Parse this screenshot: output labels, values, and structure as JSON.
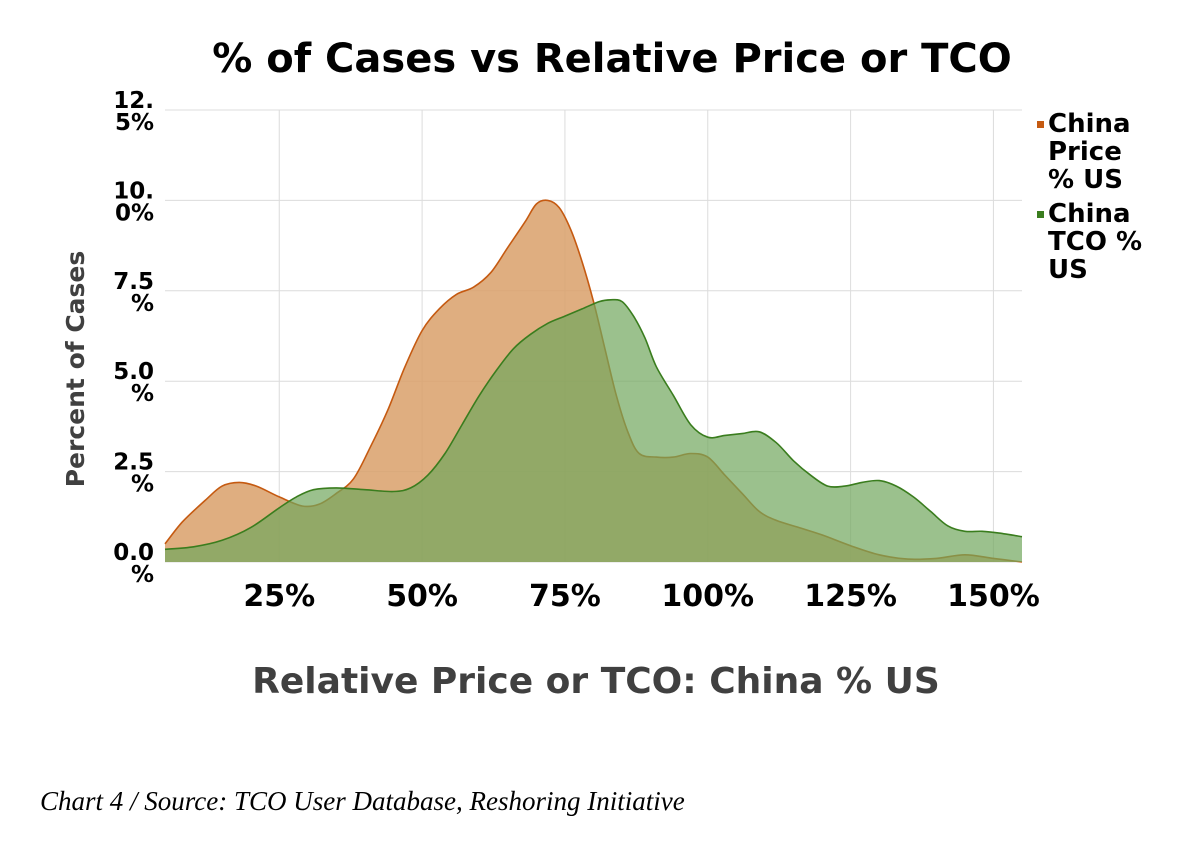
{
  "chart_data": {
    "type": "area",
    "title": "% of Cases vs Relative Price or TCO",
    "xlabel": "Relative Price or TCO:  China % US",
    "ylabel": "Percent of Cases",
    "xlim": [
      5,
      155
    ],
    "ylim": [
      0,
      12.5
    ],
    "x_ticks": [
      25,
      50,
      75,
      100,
      125,
      150
    ],
    "x_tick_labels": [
      "25%",
      "50%",
      "75%",
      "100%",
      "125%",
      "150%"
    ],
    "y_ticks": [
      0,
      2.5,
      5,
      7.5,
      10,
      12.5
    ],
    "y_tick_labels": [
      [
        "0.0",
        "%"
      ],
      [
        "2.5",
        "%"
      ],
      [
        "5.0",
        "%"
      ],
      [
        "7.5",
        "%"
      ],
      [
        "10.",
        "0%"
      ],
      [
        "12.",
        "5%"
      ]
    ],
    "grid": true,
    "legend_position": "right",
    "series": [
      {
        "name": "China Price % US",
        "legend_lines": [
          "China",
          "Price",
          "% US"
        ],
        "color": "#c55a11",
        "fill": "#d9a06a",
        "points": [
          [
            5,
            0.5
          ],
          [
            8,
            1.1
          ],
          [
            12,
            1.7
          ],
          [
            15,
            2.1
          ],
          [
            18,
            2.2
          ],
          [
            21,
            2.1
          ],
          [
            25,
            1.8
          ],
          [
            29,
            1.55
          ],
          [
            32,
            1.6
          ],
          [
            35,
            1.9
          ],
          [
            38,
            2.3
          ],
          [
            41,
            3.2
          ],
          [
            44,
            4.2
          ],
          [
            47,
            5.4
          ],
          [
            50,
            6.4
          ],
          [
            53,
            7.0
          ],
          [
            56,
            7.4
          ],
          [
            59,
            7.6
          ],
          [
            62,
            8.0
          ],
          [
            65,
            8.7
          ],
          [
            68,
            9.4
          ],
          [
            70,
            9.9
          ],
          [
            72,
            10.0
          ],
          [
            74,
            9.8
          ],
          [
            76,
            9.2
          ],
          [
            78,
            8.3
          ],
          [
            80,
            7.2
          ],
          [
            82,
            5.9
          ],
          [
            84,
            4.6
          ],
          [
            86,
            3.6
          ],
          [
            88,
            3.0
          ],
          [
            91,
            2.9
          ],
          [
            94,
            2.9
          ],
          [
            97,
            3.0
          ],
          [
            100,
            2.9
          ],
          [
            103,
            2.4
          ],
          [
            106,
            1.9
          ],
          [
            109,
            1.4
          ],
          [
            112,
            1.15
          ],
          [
            116,
            0.95
          ],
          [
            120,
            0.75
          ],
          [
            125,
            0.45
          ],
          [
            130,
            0.2
          ],
          [
            135,
            0.08
          ],
          [
            140,
            0.1
          ],
          [
            145,
            0.2
          ],
          [
            150,
            0.1
          ],
          [
            155,
            0.0
          ]
        ]
      },
      {
        "name": "China TCO % US",
        "legend_lines": [
          "China",
          "TCO %",
          "US"
        ],
        "color": "#3a7d1e",
        "fill": "#70a75d",
        "points": [
          [
            5,
            0.35
          ],
          [
            10,
            0.42
          ],
          [
            15,
            0.6
          ],
          [
            20,
            0.95
          ],
          [
            25,
            1.5
          ],
          [
            28,
            1.8
          ],
          [
            31,
            2.0
          ],
          [
            35,
            2.05
          ],
          [
            40,
            2.0
          ],
          [
            45,
            1.95
          ],
          [
            48,
            2.05
          ],
          [
            51,
            2.4
          ],
          [
            54,
            3.0
          ],
          [
            57,
            3.8
          ],
          [
            60,
            4.6
          ],
          [
            63,
            5.3
          ],
          [
            66,
            5.9
          ],
          [
            69,
            6.3
          ],
          [
            72,
            6.6
          ],
          [
            75,
            6.8
          ],
          [
            78,
            7.0
          ],
          [
            81,
            7.2
          ],
          [
            83,
            7.25
          ],
          [
            85,
            7.2
          ],
          [
            87,
            6.8
          ],
          [
            89,
            6.2
          ],
          [
            91,
            5.4
          ],
          [
            94,
            4.6
          ],
          [
            97,
            3.8
          ],
          [
            100,
            3.45
          ],
          [
            103,
            3.5
          ],
          [
            106,
            3.55
          ],
          [
            109,
            3.6
          ],
          [
            112,
            3.3
          ],
          [
            115,
            2.8
          ],
          [
            118,
            2.4
          ],
          [
            121,
            2.1
          ],
          [
            124,
            2.1
          ],
          [
            127,
            2.2
          ],
          [
            130,
            2.25
          ],
          [
            133,
            2.1
          ],
          [
            136,
            1.8
          ],
          [
            139,
            1.4
          ],
          [
            142,
            1.0
          ],
          [
            145,
            0.85
          ],
          [
            148,
            0.85
          ],
          [
            151,
            0.8
          ],
          [
            155,
            0.7
          ]
        ]
      }
    ]
  },
  "caption": "Chart 4 / Source: TCO User Database, Reshoring Initiative"
}
